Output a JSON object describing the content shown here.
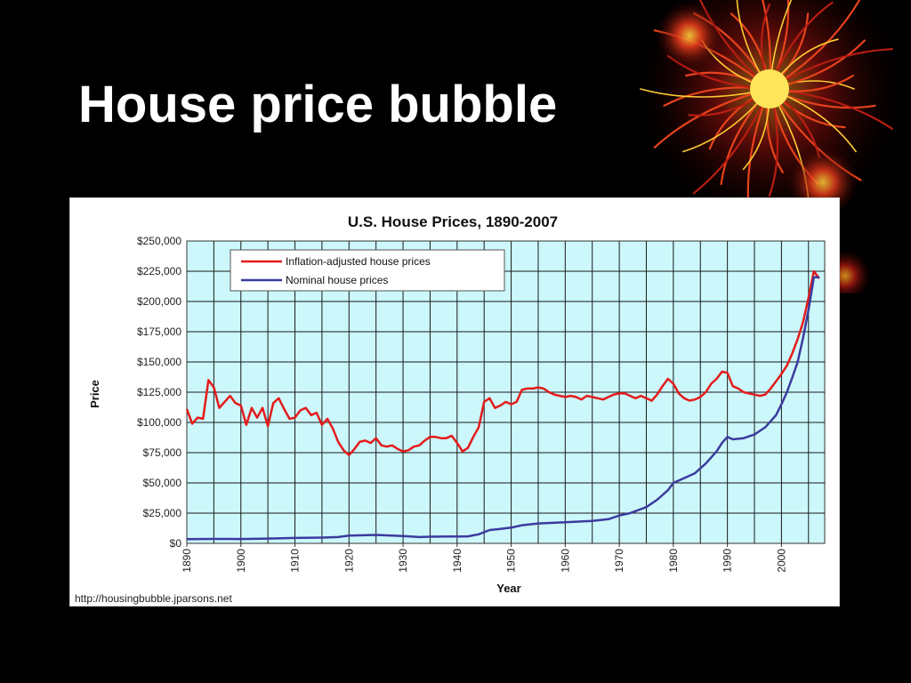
{
  "slide": {
    "title": "House price bubble"
  },
  "chart_data": {
    "type": "line",
    "title": "U.S. House Prices, 1890-2007",
    "xlabel": "Year",
    "ylabel": "Price",
    "xlim": [
      1890,
      2008
    ],
    "ylim": [
      0,
      250000
    ],
    "x_ticks": [
      1890,
      1900,
      1910,
      1920,
      1930,
      1940,
      1950,
      1960,
      1970,
      1980,
      1990,
      2000
    ],
    "y_ticks": [
      0,
      25000,
      50000,
      75000,
      100000,
      125000,
      150000,
      175000,
      200000,
      225000,
      250000
    ],
    "y_tick_labels": [
      "$0",
      "$25,000",
      "$50,000",
      "$75,000",
      "$100,000",
      "$125,000",
      "$150,000",
      "$175,000",
      "$200,000",
      "$225,000",
      "$250,000"
    ],
    "grid": true,
    "legend_position": "top-left",
    "plot_background": "#ccf7fb",
    "source": "http://housingbubble.jparsons.net",
    "series": [
      {
        "name": "Inflation-adjusted house prices",
        "color": "#e41b1b",
        "points": [
          [
            1890,
            111000
          ],
          [
            1891,
            99000
          ],
          [
            1892,
            104000
          ],
          [
            1893,
            103000
          ],
          [
            1894,
            135000
          ],
          [
            1895,
            129000
          ],
          [
            1896,
            112000
          ],
          [
            1897,
            117000
          ],
          [
            1898,
            122000
          ],
          [
            1899,
            116000
          ],
          [
            1900,
            114000
          ],
          [
            1901,
            98000
          ],
          [
            1902,
            112000
          ],
          [
            1903,
            104000
          ],
          [
            1904,
            112000
          ],
          [
            1905,
            97000
          ],
          [
            1906,
            116000
          ],
          [
            1907,
            120000
          ],
          [
            1908,
            111000
          ],
          [
            1909,
            103000
          ],
          [
            1910,
            104000
          ],
          [
            1911,
            110000
          ],
          [
            1912,
            112000
          ],
          [
            1913,
            106000
          ],
          [
            1914,
            108000
          ],
          [
            1915,
            98000
          ],
          [
            1916,
            103000
          ],
          [
            1917,
            95000
          ],
          [
            1918,
            84000
          ],
          [
            1919,
            77000
          ],
          [
            1920,
            73000
          ],
          [
            1921,
            78000
          ],
          [
            1922,
            84000
          ],
          [
            1923,
            85000
          ],
          [
            1924,
            83000
          ],
          [
            1925,
            87000
          ],
          [
            1926,
            81000
          ],
          [
            1927,
            80000
          ],
          [
            1928,
            81000
          ],
          [
            1929,
            78000
          ],
          [
            1930,
            76000
          ],
          [
            1931,
            77000
          ],
          [
            1932,
            80000
          ],
          [
            1933,
            81000
          ],
          [
            1934,
            85000
          ],
          [
            1935,
            88000
          ],
          [
            1936,
            88000
          ],
          [
            1937,
            87000
          ],
          [
            1938,
            87000
          ],
          [
            1939,
            89000
          ],
          [
            1940,
            83000
          ],
          [
            1941,
            76000
          ],
          [
            1942,
            79000
          ],
          [
            1943,
            88000
          ],
          [
            1944,
            96000
          ],
          [
            1945,
            117000
          ],
          [
            1946,
            120000
          ],
          [
            1947,
            112000
          ],
          [
            1948,
            114000
          ],
          [
            1949,
            117000
          ],
          [
            1950,
            115000
          ],
          [
            1951,
            117000
          ],
          [
            1952,
            127000
          ],
          [
            1953,
            128000
          ],
          [
            1954,
            128000
          ],
          [
            1955,
            129000
          ],
          [
            1956,
            128000
          ],
          [
            1957,
            125000
          ],
          [
            1958,
            123000
          ],
          [
            1959,
            122000
          ],
          [
            1960,
            121000
          ],
          [
            1961,
            122000
          ],
          [
            1962,
            121000
          ],
          [
            1963,
            119000
          ],
          [
            1964,
            122000
          ],
          [
            1965,
            121000
          ],
          [
            1966,
            120000
          ],
          [
            1967,
            119000
          ],
          [
            1968,
            121000
          ],
          [
            1969,
            123000
          ],
          [
            1970,
            124000
          ],
          [
            1971,
            124000
          ],
          [
            1972,
            122000
          ],
          [
            1973,
            120000
          ],
          [
            1974,
            122000
          ],
          [
            1975,
            120000
          ],
          [
            1976,
            118000
          ],
          [
            1977,
            123000
          ],
          [
            1978,
            130000
          ],
          [
            1979,
            136000
          ],
          [
            1980,
            132000
          ],
          [
            1981,
            124000
          ],
          [
            1982,
            120000
          ],
          [
            1983,
            118000
          ],
          [
            1984,
            119000
          ],
          [
            1985,
            121000
          ],
          [
            1986,
            125000
          ],
          [
            1987,
            132000
          ],
          [
            1988,
            136000
          ],
          [
            1989,
            142000
          ],
          [
            1990,
            141000
          ],
          [
            1991,
            130000
          ],
          [
            1992,
            128000
          ],
          [
            1993,
            125000
          ],
          [
            1994,
            124000
          ],
          [
            1995,
            123000
          ],
          [
            1996,
            122000
          ],
          [
            1997,
            123000
          ],
          [
            1998,
            128000
          ],
          [
            1999,
            134000
          ],
          [
            2000,
            140000
          ],
          [
            2001,
            147000
          ],
          [
            2002,
            157000
          ],
          [
            2003,
            169000
          ],
          [
            2004,
            183000
          ],
          [
            2005,
            203000
          ],
          [
            2006,
            225000
          ],
          [
            2007,
            219000
          ]
        ]
      },
      {
        "name": "Nominal house prices",
        "color": "#3b3b9e",
        "points": [
          [
            1890,
            3500
          ],
          [
            1895,
            3700
          ],
          [
            1900,
            3600
          ],
          [
            1905,
            4000
          ],
          [
            1910,
            4500
          ],
          [
            1915,
            4800
          ],
          [
            1918,
            5200
          ],
          [
            1920,
            6500
          ],
          [
            1925,
            7000
          ],
          [
            1930,
            6000
          ],
          [
            1933,
            5200
          ],
          [
            1935,
            5500
          ],
          [
            1938,
            5700
          ],
          [
            1940,
            5700
          ],
          [
            1942,
            5800
          ],
          [
            1944,
            7500
          ],
          [
            1946,
            11000
          ],
          [
            1948,
            12000
          ],
          [
            1950,
            13000
          ],
          [
            1952,
            15000
          ],
          [
            1955,
            16500
          ],
          [
            1960,
            17500
          ],
          [
            1965,
            18500
          ],
          [
            1968,
            20000
          ],
          [
            1970,
            23000
          ],
          [
            1972,
            25000
          ],
          [
            1975,
            30000
          ],
          [
            1977,
            36000
          ],
          [
            1979,
            44000
          ],
          [
            1980,
            50000
          ],
          [
            1982,
            54000
          ],
          [
            1984,
            58000
          ],
          [
            1986,
            66000
          ],
          [
            1988,
            76000
          ],
          [
            1989,
            83000
          ],
          [
            1990,
            88000
          ],
          [
            1991,
            86000
          ],
          [
            1993,
            87000
          ],
          [
            1995,
            90000
          ],
          [
            1997,
            96000
          ],
          [
            1999,
            106000
          ],
          [
            2000,
            115000
          ],
          [
            2001,
            125000
          ],
          [
            2002,
            137000
          ],
          [
            2003,
            150000
          ],
          [
            2004,
            170000
          ],
          [
            2005,
            193000
          ],
          [
            2006,
            220000
          ],
          [
            2007,
            220000
          ]
        ]
      }
    ]
  }
}
